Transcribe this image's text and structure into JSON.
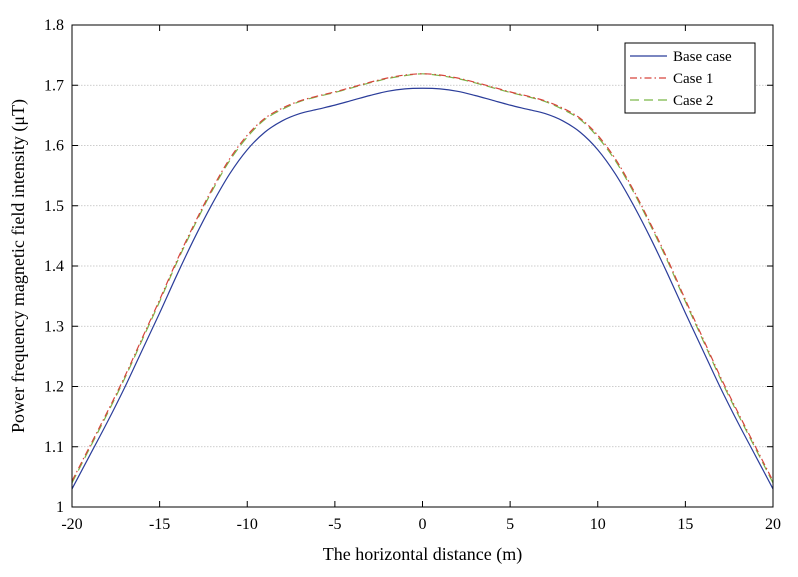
{
  "chart_data": {
    "type": "line",
    "title": "",
    "xlabel": "The horizontal distance (m)",
    "ylabel": "Power frequency magnetic field intensity (μT)",
    "xlim": [
      -20,
      20
    ],
    "ylim": [
      1,
      1.8
    ],
    "xticks": [
      -20,
      -15,
      -10,
      -5,
      0,
      5,
      10,
      15,
      20
    ],
    "xtick_labels": [
      "-20",
      "-15",
      "-10",
      "-5",
      "0",
      "5",
      "10",
      "15",
      "20"
    ],
    "yticks": [
      1,
      1.1,
      1.2,
      1.3,
      1.4,
      1.5,
      1.6,
      1.7,
      1.8
    ],
    "ytick_labels": [
      "1",
      "1.1",
      "1.2",
      "1.3",
      "1.4",
      "1.5",
      "1.6",
      "1.7",
      "1.8"
    ],
    "grid": "horizontal",
    "legend_position": "top-right",
    "x": [
      -20,
      -19,
      -18,
      -17,
      -16,
      -15,
      -14,
      -13,
      -12,
      -11,
      -10,
      -9,
      -8,
      -7,
      -6,
      -5,
      -4,
      -3,
      -2,
      -1,
      0,
      1,
      2,
      3,
      4,
      5,
      6,
      7,
      8,
      9,
      10,
      11,
      12,
      13,
      14,
      15,
      16,
      17,
      18,
      19,
      20
    ],
    "series": [
      {
        "name": "Base case",
        "color": "#2b3d9a",
        "dash": "solid",
        "values": [
          1.03,
          1.085,
          1.14,
          1.198,
          1.26,
          1.322,
          1.386,
          1.447,
          1.503,
          1.553,
          1.593,
          1.622,
          1.641,
          1.653,
          1.66,
          1.667,
          1.675,
          1.683,
          1.69,
          1.694,
          1.695,
          1.694,
          1.69,
          1.683,
          1.675,
          1.667,
          1.66,
          1.653,
          1.641,
          1.622,
          1.593,
          1.553,
          1.503,
          1.447,
          1.386,
          1.322,
          1.26,
          1.198,
          1.14,
          1.085,
          1.03
        ]
      },
      {
        "name": "Case 1",
        "color": "#d6443c",
        "dash": "dashdot",
        "values": [
          1.043,
          1.1,
          1.157,
          1.216,
          1.28,
          1.344,
          1.41,
          1.471,
          1.528,
          1.578,
          1.617,
          1.645,
          1.662,
          1.674,
          1.682,
          1.689,
          1.697,
          1.705,
          1.712,
          1.717,
          1.719,
          1.717,
          1.712,
          1.705,
          1.697,
          1.689,
          1.682,
          1.674,
          1.662,
          1.645,
          1.617,
          1.578,
          1.528,
          1.471,
          1.41,
          1.344,
          1.28,
          1.216,
          1.157,
          1.1,
          1.043
        ]
      },
      {
        "name": "Case 2",
        "color": "#7ab648",
        "dash": "dashed",
        "values": [
          1.04,
          1.097,
          1.154,
          1.213,
          1.277,
          1.341,
          1.407,
          1.468,
          1.525,
          1.575,
          1.614,
          1.643,
          1.66,
          1.673,
          1.681,
          1.688,
          1.696,
          1.704,
          1.711,
          1.716,
          1.719,
          1.716,
          1.711,
          1.704,
          1.696,
          1.688,
          1.681,
          1.673,
          1.66,
          1.643,
          1.614,
          1.575,
          1.525,
          1.468,
          1.407,
          1.341,
          1.277,
          1.213,
          1.154,
          1.097,
          1.04
        ]
      }
    ]
  }
}
